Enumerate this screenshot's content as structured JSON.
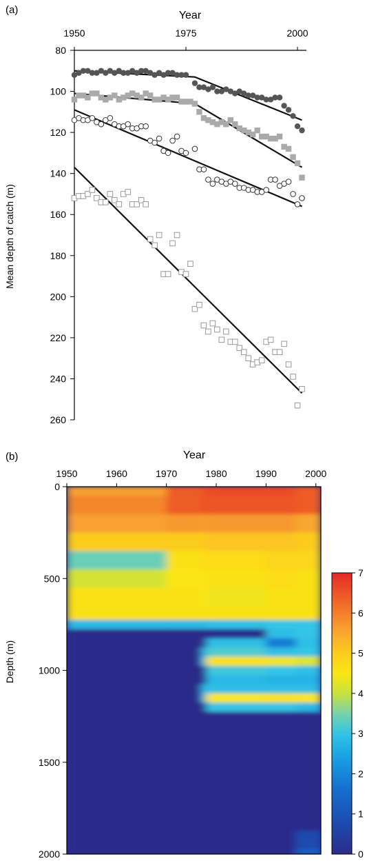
{
  "chart_data": [
    {
      "panel_label": "(a)",
      "type": "scatter",
      "xlabel": "Year",
      "ylabel": "Mean depth of catch (m)",
      "xlim": [
        1950,
        2002
      ],
      "ylim": [
        80,
        260
      ],
      "y_inverted": true,
      "x_axis_position": "top",
      "xticks": [
        1950,
        1975,
        2000
      ],
      "yticks": [
        80,
        100,
        120,
        140,
        160,
        180,
        200,
        220,
        240,
        260
      ],
      "series": [
        {
          "marker": "filled-circle",
          "color": "#555555",
          "x": [
            1950,
            1951,
            1952,
            1953,
            1954,
            1955,
            1956,
            1957,
            1958,
            1959,
            1960,
            1961,
            1962,
            1963,
            1964,
            1965,
            1966,
            1967,
            1968,
            1969,
            1970,
            1971,
            1972,
            1973,
            1974,
            1975,
            1977,
            1978,
            1979,
            1980,
            1981,
            1982,
            1983,
            1984,
            1985,
            1986,
            1987,
            1988,
            1989,
            1990,
            1991,
            1992,
            1993,
            1994,
            1995,
            1996,
            1997,
            1998,
            1999,
            2000,
            2001
          ],
          "y": [
            92,
            91,
            90,
            90,
            91,
            91,
            90,
            91,
            90,
            91,
            90,
            91,
            91,
            90,
            91,
            90,
            90,
            91,
            92,
            91,
            92,
            91,
            91,
            92,
            92,
            92,
            96,
            98,
            98,
            99,
            98,
            100,
            100,
            99,
            100,
            101,
            100,
            101,
            102,
            102,
            103,
            103,
            104,
            104,
            103,
            103,
            107,
            109,
            112,
            117,
            119
          ],
          "fit": {
            "x": [
              1950,
              1977,
              2001
            ],
            "y": [
              90,
              93,
              114
            ]
          }
        },
        {
          "marker": "filled-square",
          "color": "#aaaaaa",
          "x": [
            1950,
            1951,
            1952,
            1953,
            1954,
            1955,
            1956,
            1957,
            1958,
            1959,
            1960,
            1961,
            1962,
            1963,
            1964,
            1965,
            1966,
            1967,
            1968,
            1969,
            1970,
            1971,
            1972,
            1973,
            1974,
            1975,
            1976,
            1977,
            1978,
            1979,
            1980,
            1981,
            1982,
            1983,
            1984,
            1985,
            1986,
            1987,
            1988,
            1989,
            1990,
            1991,
            1992,
            1993,
            1994,
            1995,
            1996,
            1997,
            1998,
            1999,
            2000,
            2001
          ],
          "y": [
            104,
            102,
            102,
            103,
            101,
            101,
            103,
            104,
            103,
            102,
            104,
            103,
            102,
            101,
            102,
            103,
            101,
            102,
            104,
            104,
            103,
            104,
            103,
            103,
            105,
            105,
            105,
            106,
            110,
            113,
            114,
            115,
            116,
            115,
            116,
            114,
            116,
            118,
            119,
            120,
            121,
            119,
            122,
            122,
            123,
            123,
            122,
            127,
            128,
            132,
            135,
            142
          ],
          "fit": {
            "x": [
              1950,
              1977,
              2001
            ],
            "y": [
              101,
              106,
              137
            ]
          }
        },
        {
          "marker": "open-circle",
          "color": "#333333",
          "x": [
            1950,
            1951,
            1952,
            1953,
            1954,
            1955,
            1956,
            1957,
            1958,
            1959,
            1960,
            1961,
            1962,
            1963,
            1964,
            1965,
            1966,
            1967,
            1968,
            1969,
            1970,
            1971,
            1972,
            1973,
            1974,
            1975,
            1977,
            1978,
            1979,
            1980,
            1981,
            1982,
            1983,
            1984,
            1985,
            1986,
            1987,
            1988,
            1989,
            1990,
            1991,
            1992,
            1993,
            1994,
            1995,
            1996,
            1997,
            1998,
            1999,
            2000,
            2001
          ],
          "y": [
            114,
            113,
            114,
            114,
            113,
            115,
            116,
            114,
            113,
            116,
            117,
            117,
            116,
            118,
            118,
            117,
            117,
            124,
            125,
            123,
            129,
            130,
            124,
            122,
            129,
            130,
            128,
            138,
            138,
            143,
            145,
            143,
            144,
            145,
            144,
            145,
            147,
            147,
            148,
            148,
            149,
            149,
            148,
            143,
            143,
            146,
            145,
            144,
            150,
            155,
            152
          ],
          "fit": {
            "x": [
              1950,
              2001
            ],
            "y": [
              109,
              156
            ]
          }
        },
        {
          "marker": "open-square",
          "color": "#999999",
          "x": [
            1950,
            1951,
            1952,
            1953,
            1954,
            1955,
            1956,
            1957,
            1958,
            1959,
            1960,
            1961,
            1962,
            1963,
            1964,
            1965,
            1966,
            1967,
            1968,
            1969,
            1970,
            1971,
            1972,
            1973,
            1974,
            1975,
            1976,
            1977,
            1978,
            1979,
            1980,
            1981,
            1982,
            1983,
            1984,
            1985,
            1986,
            1987,
            1988,
            1989,
            1990,
            1991,
            1992,
            1993,
            1994,
            1995,
            1996,
            1997,
            1998,
            1999,
            2000,
            2001
          ],
          "y": [
            152,
            151,
            151,
            150,
            148,
            152,
            154,
            154,
            150,
            153,
            155,
            150,
            149,
            155,
            155,
            153,
            155,
            172,
            175,
            170,
            189,
            189,
            174,
            170,
            188,
            189,
            184,
            206,
            204,
            214,
            217,
            213,
            216,
            221,
            217,
            222,
            222,
            225,
            227,
            230,
            233,
            232,
            231,
            222,
            221,
            227,
            227,
            223,
            233,
            239,
            253,
            245
          ],
          "fit": {
            "x": [
              1950,
              2001
            ],
            "y": [
              137,
              247
            ]
          }
        }
      ]
    },
    {
      "panel_label": "(b)",
      "type": "heatmap",
      "xlabel": "Year",
      "ylabel": "Depth (m)",
      "xlim": [
        1950,
        2001
      ],
      "ylim": [
        0,
        2000
      ],
      "y_inverted": true,
      "x_axis_position": "top",
      "xticks": [
        1950,
        1960,
        1970,
        1980,
        1990,
        2000
      ],
      "yticks": [
        0,
        500,
        1000,
        1500,
        2000
      ],
      "colorbar": {
        "min": 0,
        "max": 7,
        "ticks": [
          0,
          1,
          2,
          3,
          4,
          5,
          6,
          7
        ]
      },
      "depth_levels": [
        0,
        100,
        200,
        300,
        400,
        500,
        600,
        700,
        750,
        800,
        850,
        900,
        950,
        1000,
        1050,
        1100,
        1150,
        1200,
        1250,
        1300,
        1500,
        1800,
        1950,
        2000
      ],
      "year_columns": [
        {
          "from": 1950,
          "to": 1970,
          "values": [
            5.6,
            5.9,
            5.6,
            5.0,
            3.4,
            4.1,
            4.6,
            4.6,
            2.8,
            0,
            0,
            0,
            0,
            0,
            0,
            0,
            0,
            0,
            0,
            0,
            0,
            0,
            0,
            0
          ]
        },
        {
          "from": 1970,
          "to": 1977,
          "values": [
            6.4,
            6.4,
            5.7,
            5.0,
            4.6,
            4.5,
            4.6,
            4.6,
            2.8,
            0,
            0,
            0,
            0,
            0,
            0,
            0,
            0,
            0,
            0,
            0,
            0,
            0,
            0,
            0
          ]
        },
        {
          "from": 1977,
          "to": 1978,
          "values": [
            6.5,
            6.5,
            5.6,
            5.0,
            4.7,
            4.5,
            4.5,
            4.6,
            2.8,
            0,
            0,
            2.8,
            2.9,
            0,
            0,
            2.9,
            2.8,
            0,
            0,
            0,
            0,
            0,
            0,
            0
          ]
        },
        {
          "from": 1978,
          "to": 1990,
          "values": [
            6.6,
            6.5,
            5.7,
            5.1,
            4.7,
            4.6,
            4.4,
            4.6,
            2.9,
            0,
            2.9,
            3.2,
            4.6,
            3.1,
            2.8,
            2.9,
            4.5,
            3.0,
            0,
            0,
            0,
            0,
            0,
            0
          ]
        },
        {
          "from": 1990,
          "to": 1996,
          "values": [
            6.6,
            6.5,
            5.7,
            5.1,
            4.8,
            4.7,
            4.6,
            4.6,
            3.0,
            2.9,
            1.8,
            2.9,
            4.4,
            3.0,
            2.7,
            2.9,
            4.6,
            3.0,
            0,
            0,
            0,
            0,
            0,
            0
          ]
        },
        {
          "from": 1996,
          "to": 2001,
          "values": [
            6.4,
            6.4,
            5.5,
            5.0,
            4.8,
            4.6,
            4.6,
            4.6,
            3.0,
            3.0,
            2.9,
            3.0,
            4.2,
            2.9,
            2.7,
            2.9,
            4.5,
            2.8,
            0,
            0,
            0,
            0,
            0.8,
            1.4
          ]
        }
      ]
    }
  ]
}
